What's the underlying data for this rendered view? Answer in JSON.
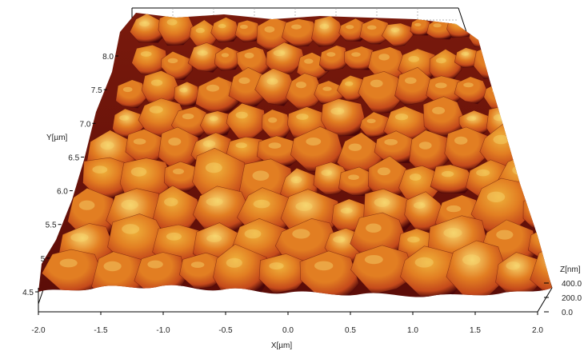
{
  "chart_data": {
    "type": "surface",
    "xlabel": "X[µm]",
    "ylabel": "Y[µm]",
    "zlabel": "Z[nm]",
    "x_ticks": [
      "-2.0",
      "-1.5",
      "-1.0",
      "-0.5",
      "0.0",
      "0.5",
      "1.0",
      "1.5",
      "2.0"
    ],
    "y_ticks": [
      "4.5",
      "5",
      "5.5",
      "6.0",
      "6.5",
      "7.0",
      "7.5",
      "8.0"
    ],
    "z_ticks": [
      "0.0",
      "200.0",
      "400.0"
    ],
    "xlim": [
      -2.0,
      2.0
    ],
    "ylim": [
      4.5,
      8.3
    ],
    "zlim": [
      0,
      400
    ],
    "colormap": [
      "#4a0608",
      "#8f1d10",
      "#c4491b",
      "#e27e22",
      "#efb13b",
      "#f7d56e"
    ],
    "background": "#ffffff",
    "box_color": "#000000",
    "grid": true
  }
}
